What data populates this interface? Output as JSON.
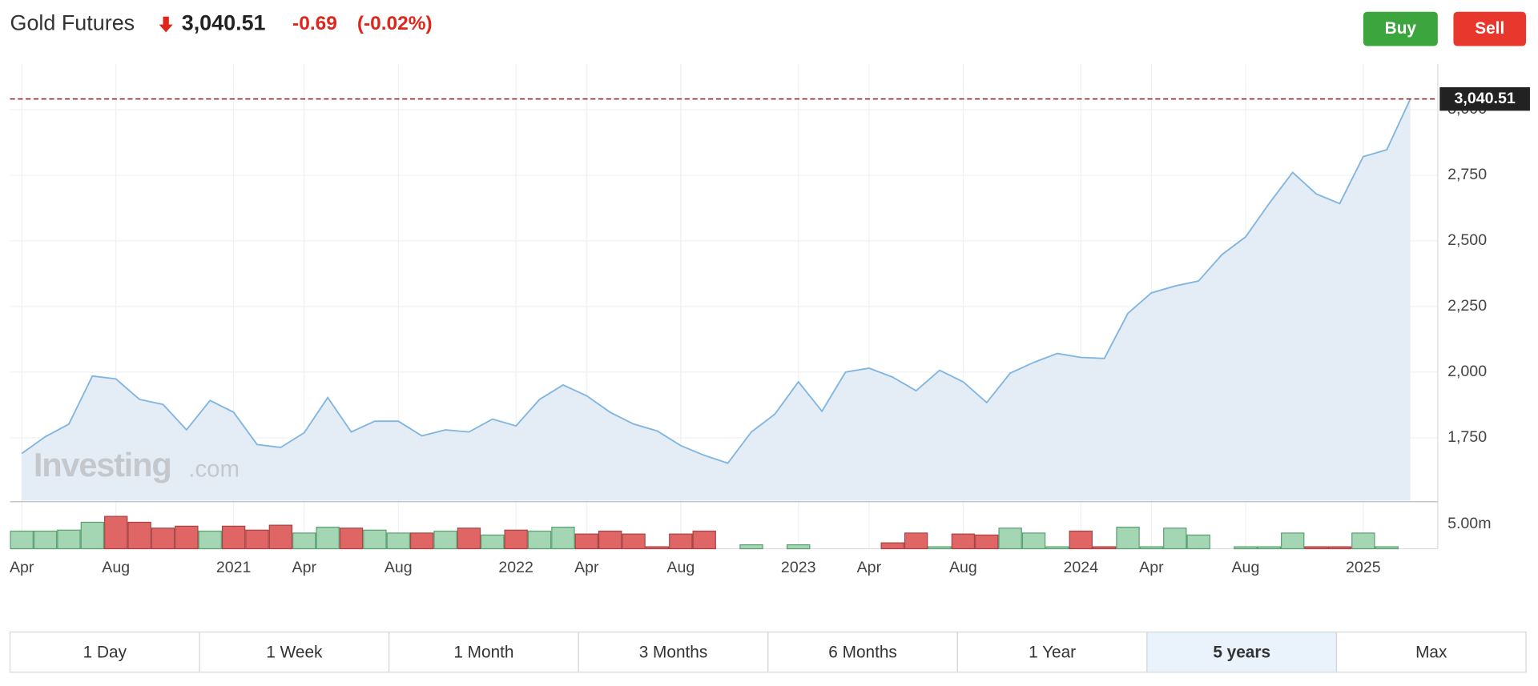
{
  "header": {
    "title": "Gold Futures",
    "price": "3,040.51",
    "change": "-0.69",
    "change_pct": "(-0.02%)"
  },
  "buttons": [
    "Buy",
    "Sell"
  ],
  "watermark": {
    "brand": "Investing",
    "suffix": ".com"
  },
  "chart_data": {
    "type": "line",
    "categories": [
      "Apr",
      null,
      null,
      null,
      "Aug",
      null,
      null,
      null,
      null,
      "2021",
      null,
      null,
      "Apr",
      null,
      null,
      null,
      "Aug",
      null,
      null,
      null,
      null,
      "2022",
      null,
      null,
      "Apr",
      null,
      null,
      null,
      "Aug",
      null,
      null,
      null,
      null,
      "2023",
      null,
      null,
      "Apr",
      null,
      null,
      null,
      "Aug",
      null,
      null,
      null,
      null,
      "2024",
      null,
      null,
      "Apr",
      null,
      null,
      null,
      "Aug",
      null,
      null,
      null,
      null,
      "2025",
      null,
      null
    ],
    "series": [
      {
        "color": "#7fb5e0",
        "values": [
          1690,
          1754,
          1802,
          1985,
          1974,
          1896,
          1877,
          1780,
          1892,
          1847,
          1724,
          1713,
          1769,
          1903,
          1772,
          1813,
          1813,
          1757,
          1780,
          1772,
          1821,
          1795,
          1896,
          1951,
          1910,
          1847,
          1802,
          1776,
          1720,
          1683,
          1653,
          1772,
          1840,
          1963,
          1851,
          2000,
          2015,
          1981,
          1929,
          2007,
          1963,
          1884,
          1996,
          2037,
          2071,
          2056,
          2052,
          2224,
          2302,
          2328,
          2347,
          2448,
          2515,
          2642,
          2761,
          2679,
          2642,
          2821,
          2847,
          3040.51
        ]
      }
    ],
    "ylim": [
      1510,
      3175
    ],
    "yticks": [
      {
        "value": 1750,
        "label": "1,750"
      },
      {
        "value": 2000,
        "label": "2,000"
      },
      {
        "value": 2250,
        "label": "2,250"
      },
      {
        "value": 2500,
        "label": "2,500"
      },
      {
        "value": 2750,
        "label": "2,750"
      },
      {
        "value": 3000,
        "label": "3,000"
      }
    ],
    "grid": true,
    "volume": {
      "values": [
        3.6,
        3.6,
        3.8,
        5.4,
        6.6,
        5.4,
        4.2,
        4.6,
        3.6,
        4.6,
        3.8,
        4.8,
        3.2,
        4.4,
        4.2,
        3.8,
        3.2,
        3.2,
        3.6,
        4.2,
        2.8,
        3.8,
        3.6,
        4.4,
        3.0,
        3.6,
        3.0,
        0.4,
        3.0,
        3.6,
        null,
        0.8,
        null,
        0.8,
        null,
        null,
        null,
        1.2,
        3.2,
        0.4,
        3.0,
        2.8,
        4.2,
        3.2,
        0.4,
        3.6,
        0.4,
        4.4,
        0.4,
        4.2,
        2.8,
        null,
        0.4,
        0.4,
        3.2,
        0.4,
        0.4,
        3.2,
        0.4,
        null
      ],
      "colors": [
        "#a5d6b4",
        "#a5d6b4",
        "#a5d6b4",
        "#a5d6b4",
        "#e06666",
        "#e06666",
        "#e06666",
        "#e06666",
        "#a5d6b4",
        "#e06666",
        "#e06666",
        "#e06666",
        "#a5d6b4",
        "#a5d6b4",
        "#e06666",
        "#a5d6b4",
        "#a5d6b4",
        "#e06666",
        "#a5d6b4",
        "#e06666",
        "#a5d6b4",
        "#e06666",
        "#a5d6b4",
        "#a5d6b4",
        "#e06666",
        "#e06666",
        "#e06666",
        "#e06666",
        "#e06666",
        "#e06666",
        null,
        "#a5d6b4",
        null,
        "#a5d6b4",
        null,
        null,
        null,
        "#e06666",
        "#e06666",
        "#a5d6b4",
        "#e06666",
        "#e06666",
        "#a5d6b4",
        "#a5d6b4",
        "#a5d6b4",
        "#e06666",
        "#e06666",
        "#a5d6b4",
        "#a5d6b4",
        "#a5d6b4",
        "#a5d6b4",
        null,
        "#a5d6b4",
        "#a5d6b4",
        "#a5d6b4",
        "#e06666",
        "#e06666",
        "#a5d6b4",
        "#a5d6b4",
        null
      ],
      "ylim": [
        0,
        9.4
      ],
      "yticks": [
        {
          "value": 5,
          "label": "5.00m"
        }
      ]
    }
  },
  "ranges": {
    "options": [
      "1 Day",
      "1 Week",
      "1 Month",
      "3 Months",
      "6 Months",
      "1 Year",
      "5 years",
      "Max"
    ],
    "selected_index": 6
  }
}
